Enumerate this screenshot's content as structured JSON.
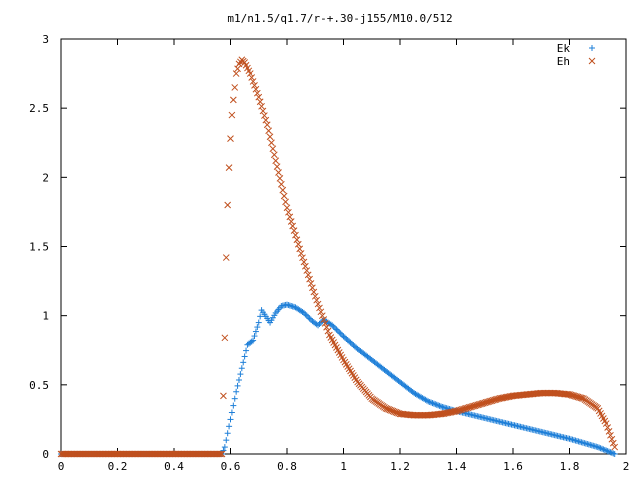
{
  "chart_data": {
    "type": "scatter",
    "title": "m1/n1.5/q1.7/r-+.30-j155/M10.0/512",
    "xlabel": "",
    "ylabel": "",
    "xlim": [
      0,
      2
    ],
    "ylim": [
      0,
      3
    ],
    "grid": false,
    "legend_position": "top-right",
    "x_ticks": [
      "0",
      "0.2",
      "0.4",
      "0.6",
      "0.8",
      "1",
      "1.2",
      "1.4",
      "1.6",
      "1.8",
      "2"
    ],
    "y_ticks": [
      "0",
      "0.5",
      "1",
      "1.5",
      "2",
      "2.5",
      "3"
    ],
    "series": [
      {
        "name": "Ek",
        "marker": "plus",
        "color": "#1e7fd8",
        "points": [
          [
            0.0,
            0
          ],
          [
            0.1,
            0
          ],
          [
            0.2,
            0
          ],
          [
            0.3,
            0
          ],
          [
            0.4,
            0
          ],
          [
            0.5,
            0
          ],
          [
            0.57,
            0
          ],
          [
            0.58,
            0.05
          ],
          [
            0.6,
            0.25
          ],
          [
            0.62,
            0.45
          ],
          [
            0.64,
            0.62
          ],
          [
            0.66,
            0.79
          ],
          [
            0.68,
            0.82
          ],
          [
            0.7,
            0.95
          ],
          [
            0.71,
            1.04
          ],
          [
            0.73,
            0.98
          ],
          [
            0.74,
            0.95
          ],
          [
            0.76,
            1.02
          ],
          [
            0.78,
            1.07
          ],
          [
            0.8,
            1.08
          ],
          [
            0.83,
            1.06
          ],
          [
            0.86,
            1.02
          ],
          [
            0.89,
            0.96
          ],
          [
            0.91,
            0.93
          ],
          [
            0.93,
            0.97
          ],
          [
            0.96,
            0.93
          ],
          [
            1.0,
            0.85
          ],
          [
            1.05,
            0.76
          ],
          [
            1.1,
            0.68
          ],
          [
            1.15,
            0.6
          ],
          [
            1.2,
            0.52
          ],
          [
            1.25,
            0.44
          ],
          [
            1.3,
            0.38
          ],
          [
            1.35,
            0.34
          ],
          [
            1.4,
            0.31
          ],
          [
            1.5,
            0.26
          ],
          [
            1.6,
            0.21
          ],
          [
            1.7,
            0.16
          ],
          [
            1.8,
            0.11
          ],
          [
            1.9,
            0.05
          ],
          [
            1.96,
            0.0
          ]
        ]
      },
      {
        "name": "Eh",
        "marker": "cross",
        "color": "#c0501e",
        "points": [
          [
            0.0,
            0
          ],
          [
            0.1,
            0
          ],
          [
            0.2,
            0
          ],
          [
            0.3,
            0
          ],
          [
            0.4,
            0
          ],
          [
            0.5,
            0
          ],
          [
            0.57,
            0
          ],
          [
            0.58,
            0.84
          ],
          [
            0.585,
            1.42
          ],
          [
            0.59,
            1.8
          ],
          [
            0.595,
            2.07
          ],
          [
            0.6,
            2.28
          ],
          [
            0.605,
            2.45
          ],
          [
            0.61,
            2.56
          ],
          [
            0.615,
            2.65
          ],
          [
            0.62,
            2.75
          ],
          [
            0.63,
            2.82
          ],
          [
            0.64,
            2.85
          ],
          [
            0.65,
            2.83
          ],
          [
            0.67,
            2.75
          ],
          [
            0.7,
            2.58
          ],
          [
            0.73,
            2.38
          ],
          [
            0.76,
            2.12
          ],
          [
            0.8,
            1.78
          ],
          [
            0.85,
            1.45
          ],
          [
            0.9,
            1.14
          ],
          [
            0.95,
            0.86
          ],
          [
            1.0,
            0.68
          ],
          [
            1.05,
            0.52
          ],
          [
            1.1,
            0.4
          ],
          [
            1.15,
            0.33
          ],
          [
            1.2,
            0.29
          ],
          [
            1.25,
            0.28
          ],
          [
            1.3,
            0.28
          ],
          [
            1.35,
            0.29
          ],
          [
            1.4,
            0.31
          ],
          [
            1.45,
            0.34
          ],
          [
            1.5,
            0.37
          ],
          [
            1.55,
            0.4
          ],
          [
            1.6,
            0.42
          ],
          [
            1.65,
            0.43
          ],
          [
            1.7,
            0.44
          ],
          [
            1.75,
            0.44
          ],
          [
            1.8,
            0.43
          ],
          [
            1.85,
            0.4
          ],
          [
            1.9,
            0.33
          ],
          [
            1.93,
            0.22
          ],
          [
            1.96,
            0.05
          ]
        ]
      }
    ]
  }
}
